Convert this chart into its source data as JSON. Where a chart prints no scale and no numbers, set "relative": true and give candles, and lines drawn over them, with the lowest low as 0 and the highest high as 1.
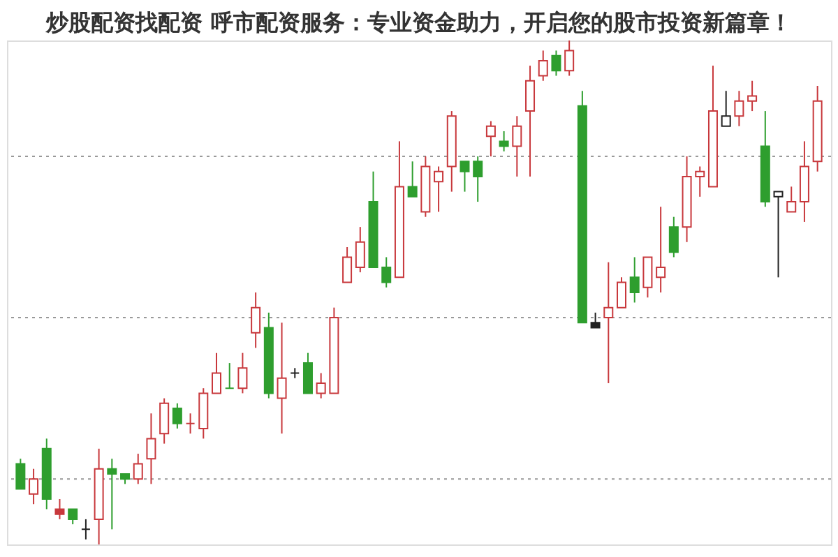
{
  "chart_data": {
    "type": "candlestick",
    "title": "炒股配资找配资 呼市配资服务：专业资金助力，开启您的股市投资新篇章！",
    "relative": true,
    "categories": [
      null,
      null,
      null,
      null,
      null,
      null,
      null,
      null,
      null,
      null,
      null,
      null,
      null,
      null,
      null,
      null,
      null,
      null,
      null,
      null,
      null,
      null,
      null,
      null,
      null,
      null,
      null,
      null,
      null,
      null,
      null,
      null,
      null,
      null,
      null,
      null,
      null,
      null,
      null,
      null,
      null,
      null,
      null,
      null,
      null,
      null,
      null,
      null,
      null,
      null,
      null,
      null,
      null,
      null,
      null,
      null,
      null,
      null,
      null,
      null,
      null,
      null
    ],
    "ohlc": [
      [
        0.16,
        0.17,
        0.11,
        0.11
      ],
      [
        0.1,
        0.15,
        0.08,
        0.13
      ],
      [
        0.19,
        0.21,
        0.07,
        0.09
      ],
      [
        0.07,
        0.09,
        0.05,
        0.06
      ],
      [
        0.07,
        0.07,
        0.04,
        0.05
      ],
      [
        0.03,
        0.05,
        0.01,
        0.03
      ],
      [
        0.05,
        0.19,
        0.0,
        0.15
      ],
      [
        0.15,
        0.17,
        0.03,
        0.14
      ],
      [
        0.14,
        0.14,
        0.12,
        0.13
      ],
      [
        0.13,
        0.18,
        0.12,
        0.16
      ],
      [
        0.17,
        0.26,
        0.12,
        0.21
      ],
      [
        0.22,
        0.29,
        0.2,
        0.28
      ],
      [
        0.27,
        0.28,
        0.23,
        0.24
      ],
      [
        0.24,
        0.26,
        0.22,
        0.24
      ],
      [
        0.23,
        0.31,
        0.21,
        0.3
      ],
      [
        0.3,
        0.38,
        0.3,
        0.34
      ],
      [
        0.31,
        0.36,
        0.31,
        0.31
      ],
      [
        0.31,
        0.38,
        0.3,
        0.35
      ],
      [
        0.42,
        0.5,
        0.39,
        0.47
      ],
      [
        0.43,
        0.46,
        0.29,
        0.3
      ],
      [
        0.29,
        0.44,
        0.22,
        0.33
      ],
      [
        0.34,
        0.35,
        0.33,
        0.34
      ],
      [
        0.36,
        0.38,
        0.3,
        0.3
      ],
      [
        0.3,
        0.34,
        0.29,
        0.32
      ],
      [
        0.3,
        0.47,
        0.3,
        0.45
      ],
      [
        0.52,
        0.59,
        0.52,
        0.57
      ],
      [
        0.55,
        0.63,
        0.54,
        0.6
      ],
      [
        0.68,
        0.74,
        0.55,
        0.55
      ],
      [
        0.55,
        0.57,
        0.51,
        0.52
      ],
      [
        0.53,
        0.8,
        0.53,
        0.71
      ],
      [
        0.71,
        0.76,
        0.69,
        0.69
      ],
      [
        0.66,
        0.77,
        0.65,
        0.75
      ],
      [
        0.72,
        0.75,
        0.66,
        0.74
      ],
      [
        0.75,
        0.86,
        0.7,
        0.85
      ],
      [
        0.76,
        0.76,
        0.7,
        0.74
      ],
      [
        0.76,
        0.77,
        0.68,
        0.73
      ],
      [
        0.81,
        0.84,
        0.77,
        0.83
      ],
      [
        0.8,
        0.82,
        0.78,
        0.79
      ],
      [
        0.79,
        0.85,
        0.73,
        0.83
      ],
      [
        0.86,
        0.95,
        0.73,
        0.92
      ],
      [
        0.93,
        0.98,
        0.92,
        0.96
      ],
      [
        0.97,
        0.98,
        0.93,
        0.94
      ],
      [
        0.94,
        1.0,
        0.93,
        0.98
      ],
      [
        0.87,
        0.9,
        0.44,
        0.44
      ],
      [
        0.44,
        0.46,
        0.43,
        0.43
      ],
      [
        0.45,
        0.56,
        0.32,
        0.47
      ],
      [
        0.47,
        0.53,
        0.47,
        0.52
      ],
      [
        0.53,
        0.57,
        0.48,
        0.5
      ],
      [
        0.51,
        0.57,
        0.49,
        0.57
      ],
      [
        0.53,
        0.67,
        0.5,
        0.55
      ],
      [
        0.63,
        0.65,
        0.57,
        0.58
      ],
      [
        0.63,
        0.77,
        0.6,
        0.73
      ],
      [
        0.73,
        0.75,
        0.69,
        0.74
      ],
      [
        0.71,
        0.95,
        0.71,
        0.86
      ],
      [
        0.83,
        0.9,
        0.83,
        0.85
      ],
      [
        0.85,
        0.9,
        0.83,
        0.88
      ],
      [
        0.88,
        0.92,
        0.86,
        0.89
      ],
      [
        0.79,
        0.86,
        0.67,
        0.68
      ],
      [
        0.69,
        0.7,
        0.53,
        0.7
      ],
      [
        0.66,
        0.71,
        0.66,
        0.68
      ],
      [
        0.68,
        0.8,
        0.64,
        0.75
      ],
      [
        0.76,
        0.91,
        0.74,
        0.88
      ]
    ],
    "colors": [
      "#2e9e2e",
      "#c8383c",
      "#2e9e2e",
      "#c8383c",
      "#2e9e2e",
      "#222222",
      "#c8383c",
      "#2e9e2e",
      "#2e9e2e",
      "#c8383c",
      "#c8383c",
      "#c8383c",
      "#2e9e2e",
      "#c8383c",
      "#c8383c",
      "#c8383c",
      "#2e9e2e",
      "#c8383c",
      "#c8383c",
      "#2e9e2e",
      "#c8383c",
      "#222222",
      "#2e9e2e",
      "#c8383c",
      "#c8383c",
      "#c8383c",
      "#c8383c",
      "#2e9e2e",
      "#2e9e2e",
      "#c8383c",
      "#2e9e2e",
      "#c8383c",
      "#c8383c",
      "#c8383c",
      "#2e9e2e",
      "#2e9e2e",
      "#c8383c",
      "#2e9e2e",
      "#c8383c",
      "#c8383c",
      "#c8383c",
      "#2e9e2e",
      "#c8383c",
      "#2e9e2e",
      "#222222",
      "#c8383c",
      "#c8383c",
      "#2e9e2e",
      "#c8383c",
      "#c8383c",
      "#2e9e2e",
      "#c8383c",
      "#c8383c",
      "#c8383c",
      "#222222",
      "#c8383c",
      "#c8383c",
      "#2e9e2e",
      "#222222",
      "#c8383c",
      "#c8383c",
      "#c8383c"
    ],
    "ref_lines": [
      {
        "axis": "y",
        "value": 0.77,
        "color": "#999999",
        "line_style": "dotted"
      },
      {
        "axis": "y",
        "value": 0.45,
        "color": "#999999",
        "line_style": "dotted"
      },
      {
        "axis": "y",
        "value": 0.13,
        "color": "#999999",
        "line_style": "dotted"
      }
    ]
  }
}
